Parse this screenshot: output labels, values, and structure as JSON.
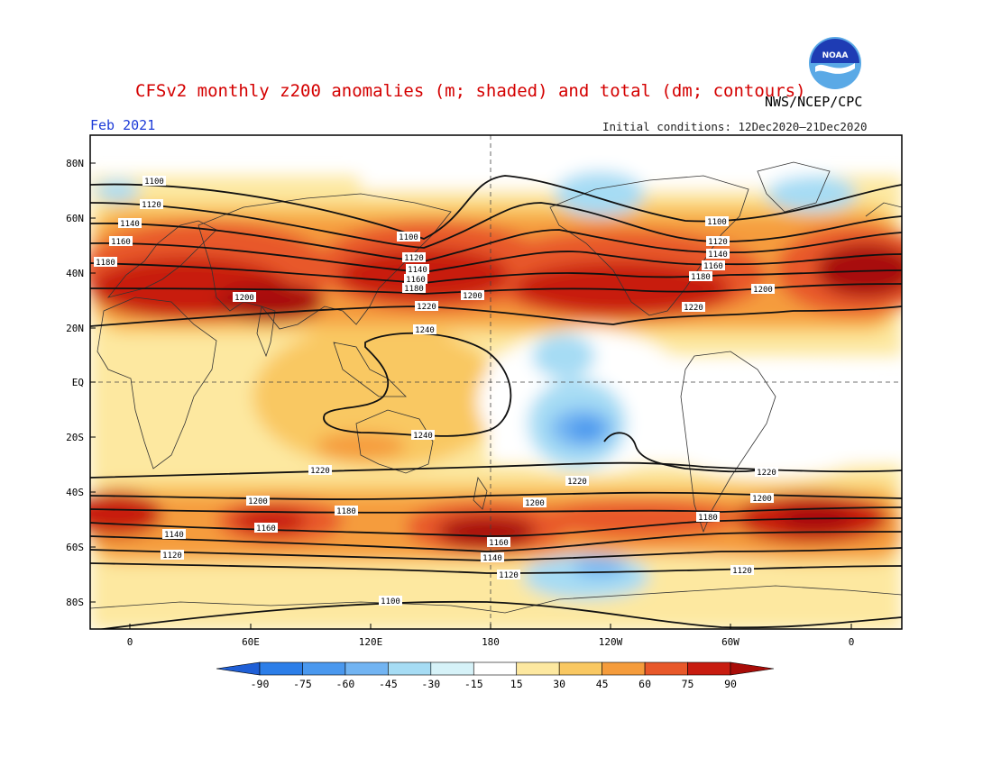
{
  "title": "CFSv2 monthly z200 anomalies (m; shaded) and total (dm; contours)",
  "agency": "NWS/NCEP/CPC",
  "logo_text": "NOAA",
  "month": "Feb 2021",
  "initial_conditions": "Initial conditions: 12Dec2020—21Dec2020",
  "lat_labels": [
    "80N",
    "60N",
    "40N",
    "20N",
    "EQ",
    "20S",
    "40S",
    "60S",
    "80S"
  ],
  "lon_labels": [
    "0",
    "60E",
    "120E",
    "180",
    "120W",
    "60W",
    "0"
  ],
  "colorbar": {
    "labels": [
      "-90",
      "-75",
      "-60",
      "-45",
      "-30",
      "-15",
      "15",
      "30",
      "45",
      "60",
      "75",
      "90"
    ],
    "colors": [
      "#1f5fd6",
      "#2c7ee8",
      "#4a98ee",
      "#72b4f2",
      "#a6dcf4",
      "#d6f2f8",
      "#ffffff",
      "#fde8a0",
      "#f9c862",
      "#f59c3c",
      "#e8582a",
      "#c81c10",
      "#a80c08"
    ]
  },
  "contour_labels": {
    "nh": [
      "1100",
      "1120",
      "1140",
      "1160",
      "1180",
      "1200",
      "1220",
      "1240"
    ],
    "sh": [
      "1240",
      "1220",
      "1200",
      "1180",
      "1160",
      "1140",
      "1120",
      "1100"
    ]
  }
}
